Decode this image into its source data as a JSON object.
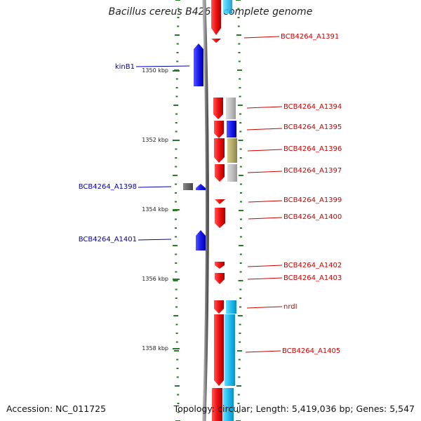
{
  "title": "Bacillus cereus B4264, complete genome",
  "footer": {
    "accession": "Accession: NC_011725",
    "summary": "Topology: circular; Length: 5,419,036 bp; Genes: 5,547"
  },
  "colors": {
    "forward": "#ee1111",
    "reverse": "#1a1aee",
    "label_forward": "#cc0000",
    "label_reverse": "#0000aa",
    "backbone": "#7f7f7f",
    "tick": "#2a7a2a",
    "cog_gray": "#c0c0c0",
    "cog_blue": "#1010ee",
    "cog_olive": "#b5ac6a",
    "cog_cyan": "#22bbee",
    "cog_dark": "#666666"
  },
  "scale_labels": [
    "1350 kbp",
    "1352 kbp",
    "1354 kbp",
    "1356 kbp",
    "1358 kbp"
  ],
  "genes_right": [
    {
      "label": "BCB4264_A1391"
    },
    {
      "label": "BCB4264_A1394"
    },
    {
      "label": "BCB4264_A1395"
    },
    {
      "label": "BCB4264_A1396"
    },
    {
      "label": "BCB4264_A1397"
    },
    {
      "label": "BCB4264_A1399"
    },
    {
      "label": "BCB4264_A1400"
    },
    {
      "label": "BCB4264_A1402"
    },
    {
      "label": "BCB4264_A1403"
    },
    {
      "label": "nrdI"
    },
    {
      "label": "BCB4264_A1405"
    }
  ],
  "genes_left": [
    {
      "label": "kinB1"
    },
    {
      "label": "BCB4264_A1398"
    },
    {
      "label": "BCB4264_A1401"
    }
  ]
}
